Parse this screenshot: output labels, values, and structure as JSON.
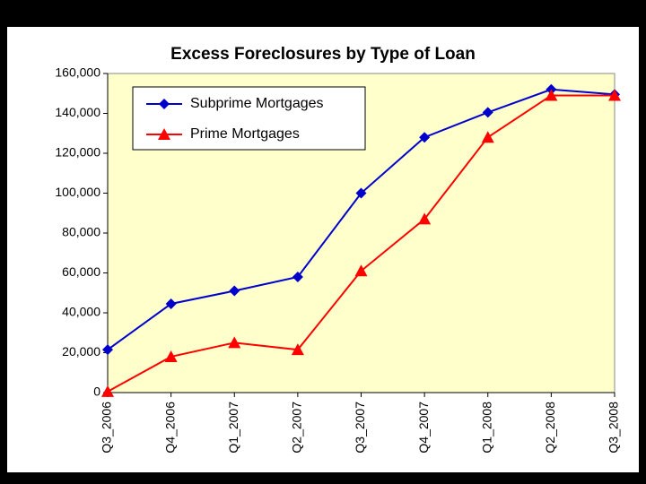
{
  "chart_data": {
    "type": "line",
    "title": "Excess Foreclosures by Type of Loan",
    "categories": [
      "Q3_2006",
      "Q4_2006",
      "Q1_2007",
      "Q2_2007",
      "Q3_2007",
      "Q4_2007",
      "Q1_2008",
      "Q2_2008",
      "Q3_2008"
    ],
    "series": [
      {
        "name": "Subprime Mortgages",
        "color": "#0000cc",
        "marker": "diamond",
        "values": [
          21500,
          44500,
          51000,
          58000,
          100000,
          128000,
          140500,
          152000,
          149500
        ]
      },
      {
        "name": "Prime Mortgages",
        "color": "#ff0000",
        "marker": "triangle",
        "values": [
          500,
          18000,
          25000,
          21500,
          61000,
          87000,
          128000,
          149000,
          149000
        ]
      }
    ],
    "ylim": [
      0,
      160000
    ],
    "yticks": [
      0,
      {
        "value": 20000,
        "label": "20,000"
      },
      {
        "value": 40000,
        "label": "40,000"
      },
      {
        "value": 60000,
        "label": "60,000"
      },
      {
        "value": 80000,
        "label": "80,000"
      },
      {
        "value": 100000,
        "label": "100,000"
      },
      {
        "value": 120000,
        "label": "120,000"
      },
      {
        "value": 140000,
        "label": "140,000"
      },
      {
        "value": 160000,
        "label": "160,000"
      }
    ],
    "grid": false,
    "legend": "top-left",
    "plot_background": "#ffffcc"
  }
}
